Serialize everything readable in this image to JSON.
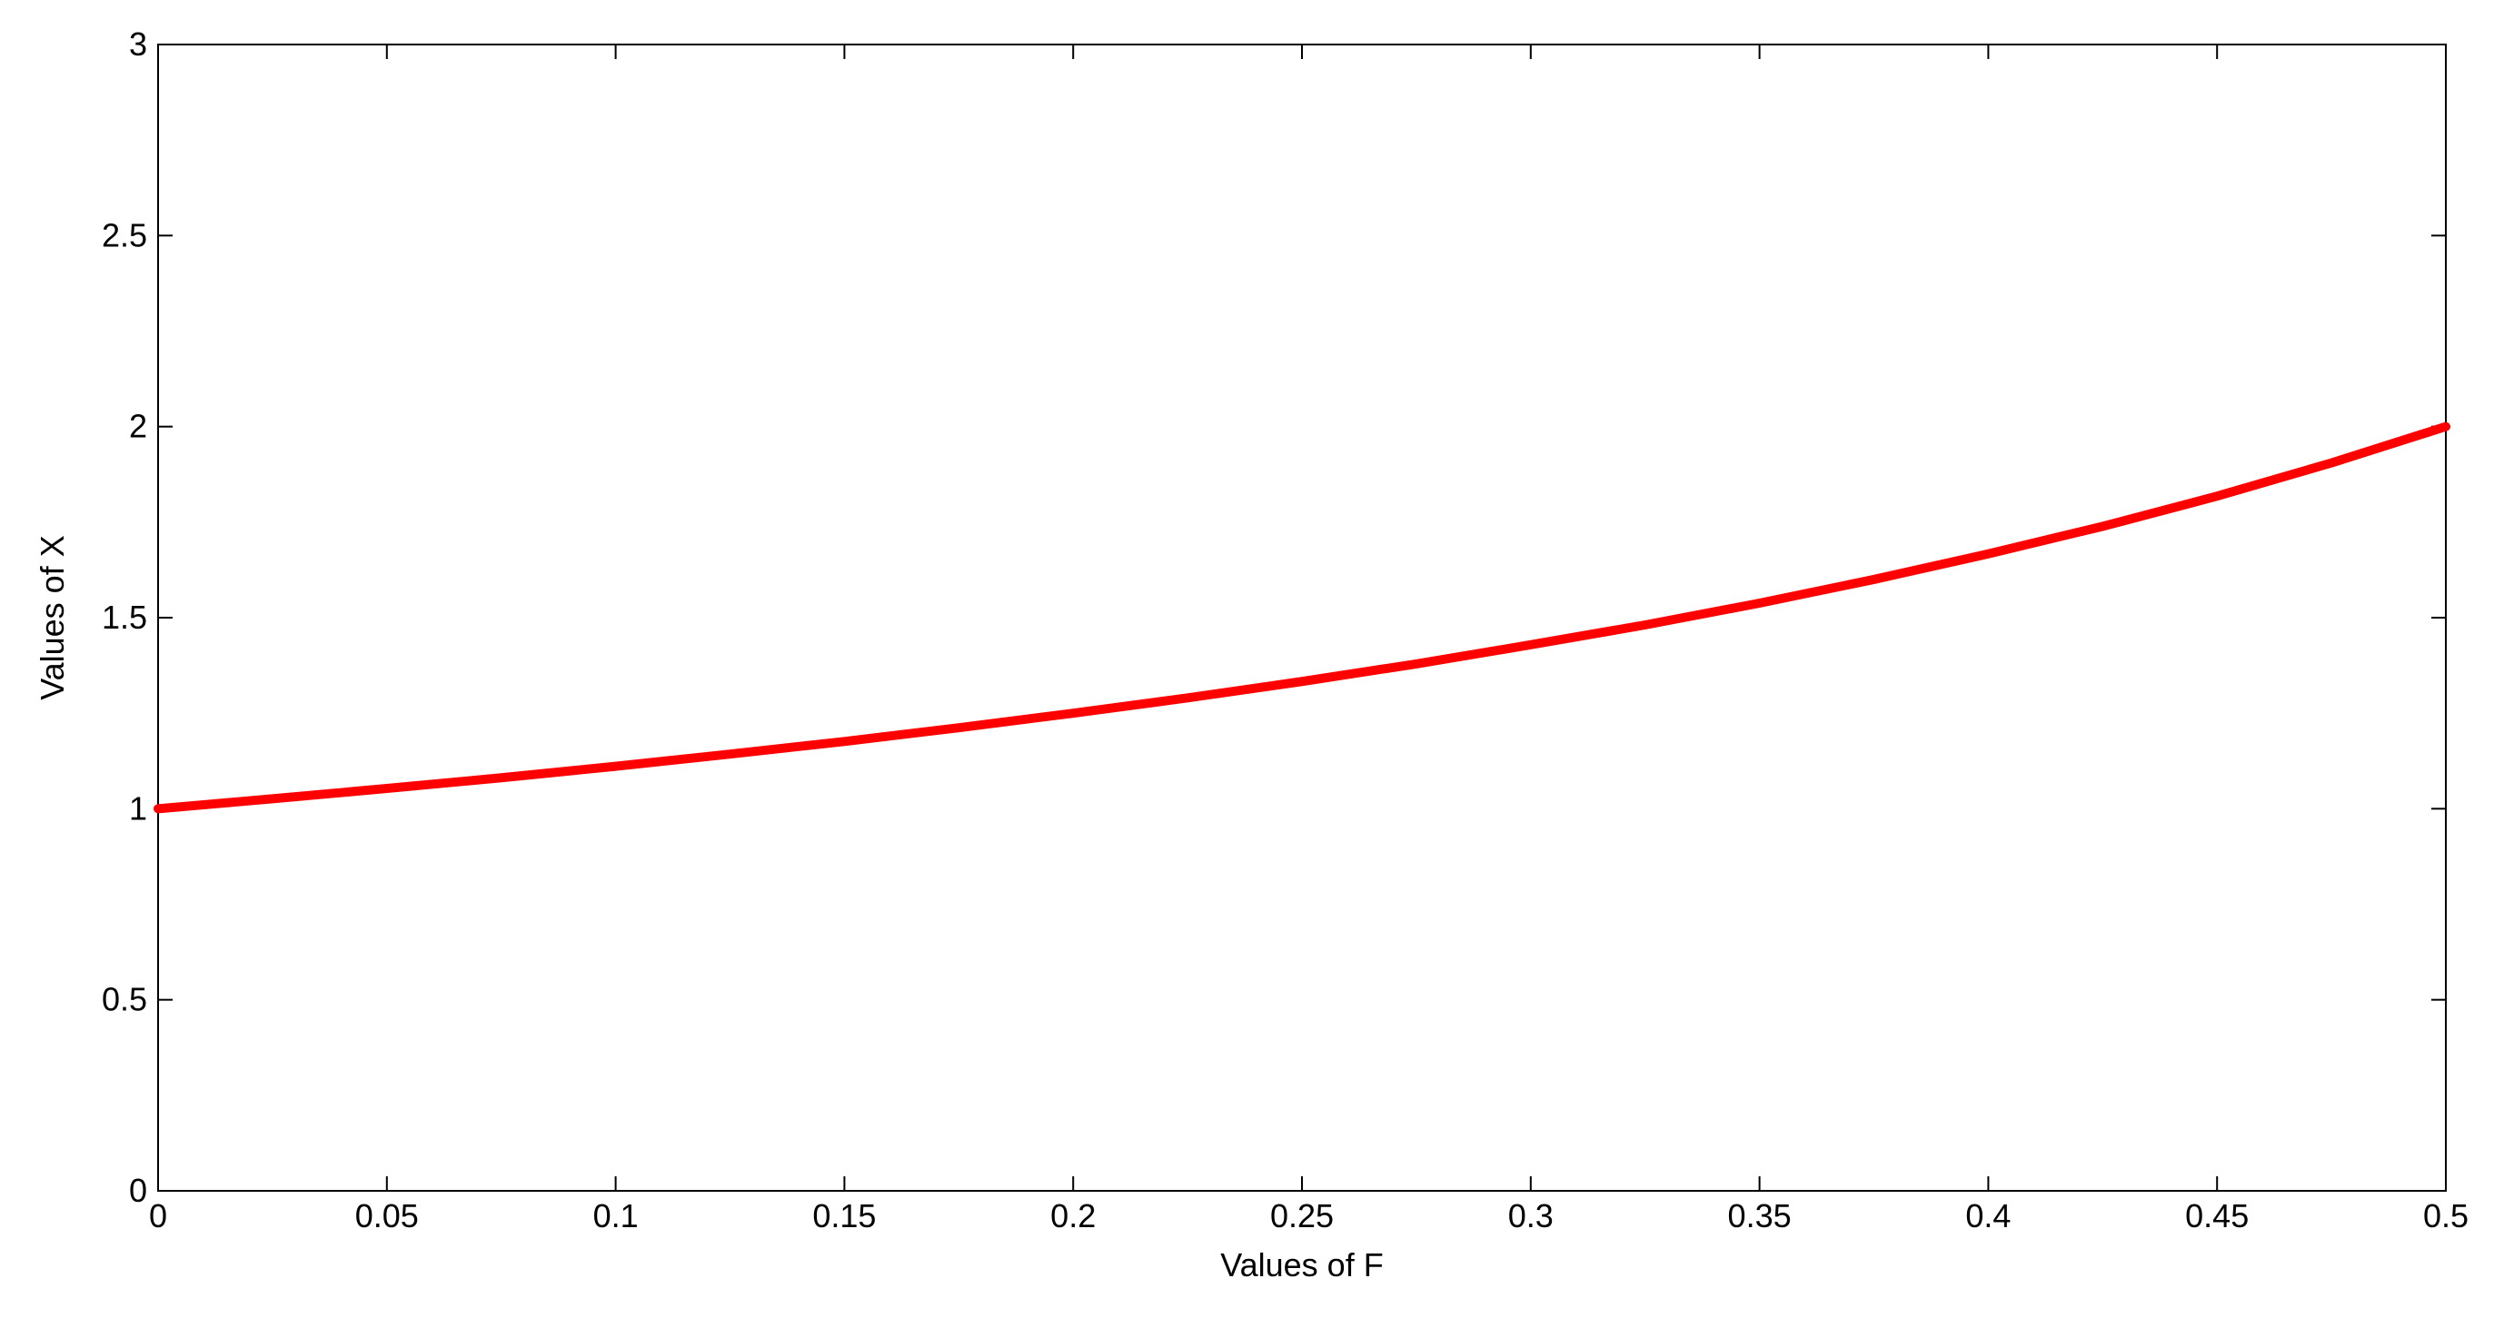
{
  "chart_data": {
    "type": "line",
    "x_label": "Values of F",
    "y_label": "Values of X",
    "x": [
      0,
      0.025,
      0.05,
      0.075,
      0.1,
      0.125,
      0.15,
      0.175,
      0.2,
      0.225,
      0.25,
      0.275,
      0.3,
      0.325,
      0.35,
      0.375,
      0.4,
      0.425,
      0.45,
      0.475,
      0.5
    ],
    "values": [
      1,
      1.026,
      1.053,
      1.081,
      1.111,
      1.143,
      1.176,
      1.212,
      1.25,
      1.29,
      1.333,
      1.379,
      1.429,
      1.481,
      1.538,
      1.6,
      1.667,
      1.739,
      1.818,
      1.905,
      2
    ],
    "color": "#ff0000",
    "xlim": [
      0,
      0.5
    ],
    "xticks": [
      0,
      0.05,
      0.1,
      0.15,
      0.2,
      0.25,
      0.3,
      0.35,
      0.4,
      0.45,
      0.5
    ],
    "ylim": [
      0,
      3
    ],
    "yticks": [
      0,
      0.5,
      1,
      1.5,
      2,
      2.5,
      3
    ]
  }
}
